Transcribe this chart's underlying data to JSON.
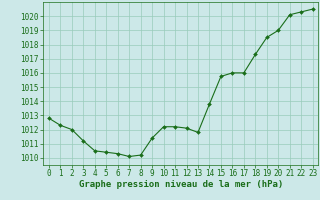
{
  "x": [
    0,
    1,
    2,
    3,
    4,
    5,
    6,
    7,
    8,
    9,
    10,
    11,
    12,
    13,
    14,
    15,
    16,
    17,
    18,
    19,
    20,
    21,
    22,
    23
  ],
  "y": [
    1012.8,
    1012.3,
    1012.0,
    1011.2,
    1010.5,
    1010.4,
    1010.3,
    1010.1,
    1010.2,
    1011.4,
    1012.2,
    1012.2,
    1012.1,
    1011.8,
    1013.8,
    1015.75,
    1016.0,
    1016.0,
    1017.3,
    1018.5,
    1019.0,
    1020.1,
    1020.3,
    1020.5
  ],
  "line_color": "#1a6e1a",
  "marker": "D",
  "marker_size": 2.0,
  "line_width": 0.8,
  "bg_color": "#cce8e8",
  "grid_color": "#99ccbb",
  "tick_color": "#1a6e1a",
  "label_color": "#1a6e1a",
  "xlabel": "Graphe pression niveau de la mer (hPa)",
  "xlabel_fontsize": 6.5,
  "tick_fontsize": 5.5,
  "ylim": [
    1009.5,
    1021.0
  ],
  "yticks": [
    1010,
    1011,
    1012,
    1013,
    1014,
    1015,
    1016,
    1017,
    1018,
    1019,
    1020
  ],
  "xticks": [
    0,
    1,
    2,
    3,
    4,
    5,
    6,
    7,
    8,
    9,
    10,
    11,
    12,
    13,
    14,
    15,
    16,
    17,
    18,
    19,
    20,
    21,
    22,
    23
  ]
}
